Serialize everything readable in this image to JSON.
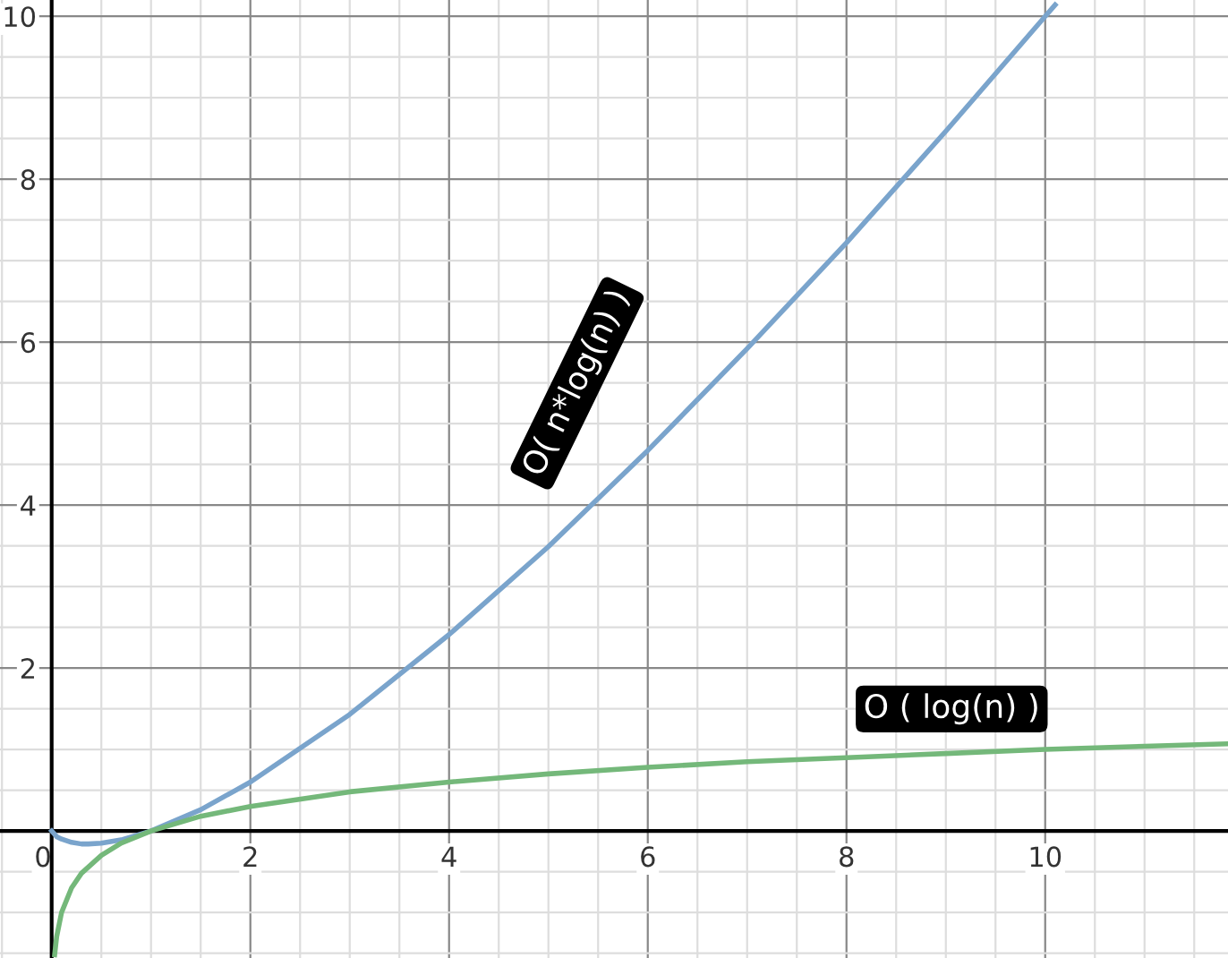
{
  "chart_data": {
    "type": "line",
    "series": [
      {
        "color": "#7aa4cc",
        "x": [
          0.0,
          0.05,
          0.1,
          0.2,
          0.3,
          0.37,
          0.5,
          0.7,
          1,
          1.5,
          2,
          3,
          4,
          5,
          6,
          7,
          8,
          9,
          10,
          10.1
        ],
        "values": [
          0,
          -0.07,
          -0.1,
          -0.14,
          -0.16,
          -0.16,
          -0.15,
          -0.11,
          0,
          0.26,
          0.6,
          1.43,
          2.41,
          3.49,
          4.67,
          5.92,
          7.22,
          8.59,
          10,
          10.14
        ]
      },
      {
        "color": "#74b87a",
        "x": [
          0.03,
          0.05,
          0.1,
          0.2,
          0.3,
          0.5,
          0.7,
          1,
          1.5,
          2,
          3,
          4,
          5,
          6,
          7,
          8,
          9,
          10,
          11,
          11.84
        ],
        "values": [
          -1.52,
          -1.3,
          -1,
          -0.7,
          -0.52,
          -0.3,
          -0.15,
          0,
          0.18,
          0.3,
          0.48,
          0.6,
          0.7,
          0.78,
          0.85,
          0.9,
          0.95,
          1,
          1.04,
          1.07
        ]
      }
    ],
    "annotations": [
      "O( n*log(n) )",
      "O ( log(n) )"
    ],
    "xlim": [
      -0.52,
      11.84
    ],
    "ylim": [
      -1.56,
      10.2
    ],
    "xticks": [
      0,
      2,
      4,
      6,
      8,
      10
    ],
    "yticks": [
      {
        "value": 0,
        "label": null
      },
      2,
      4,
      6,
      8,
      10
    ],
    "grid": true,
    "legend": false,
    "line_style": "solid",
    "marker": "none"
  }
}
